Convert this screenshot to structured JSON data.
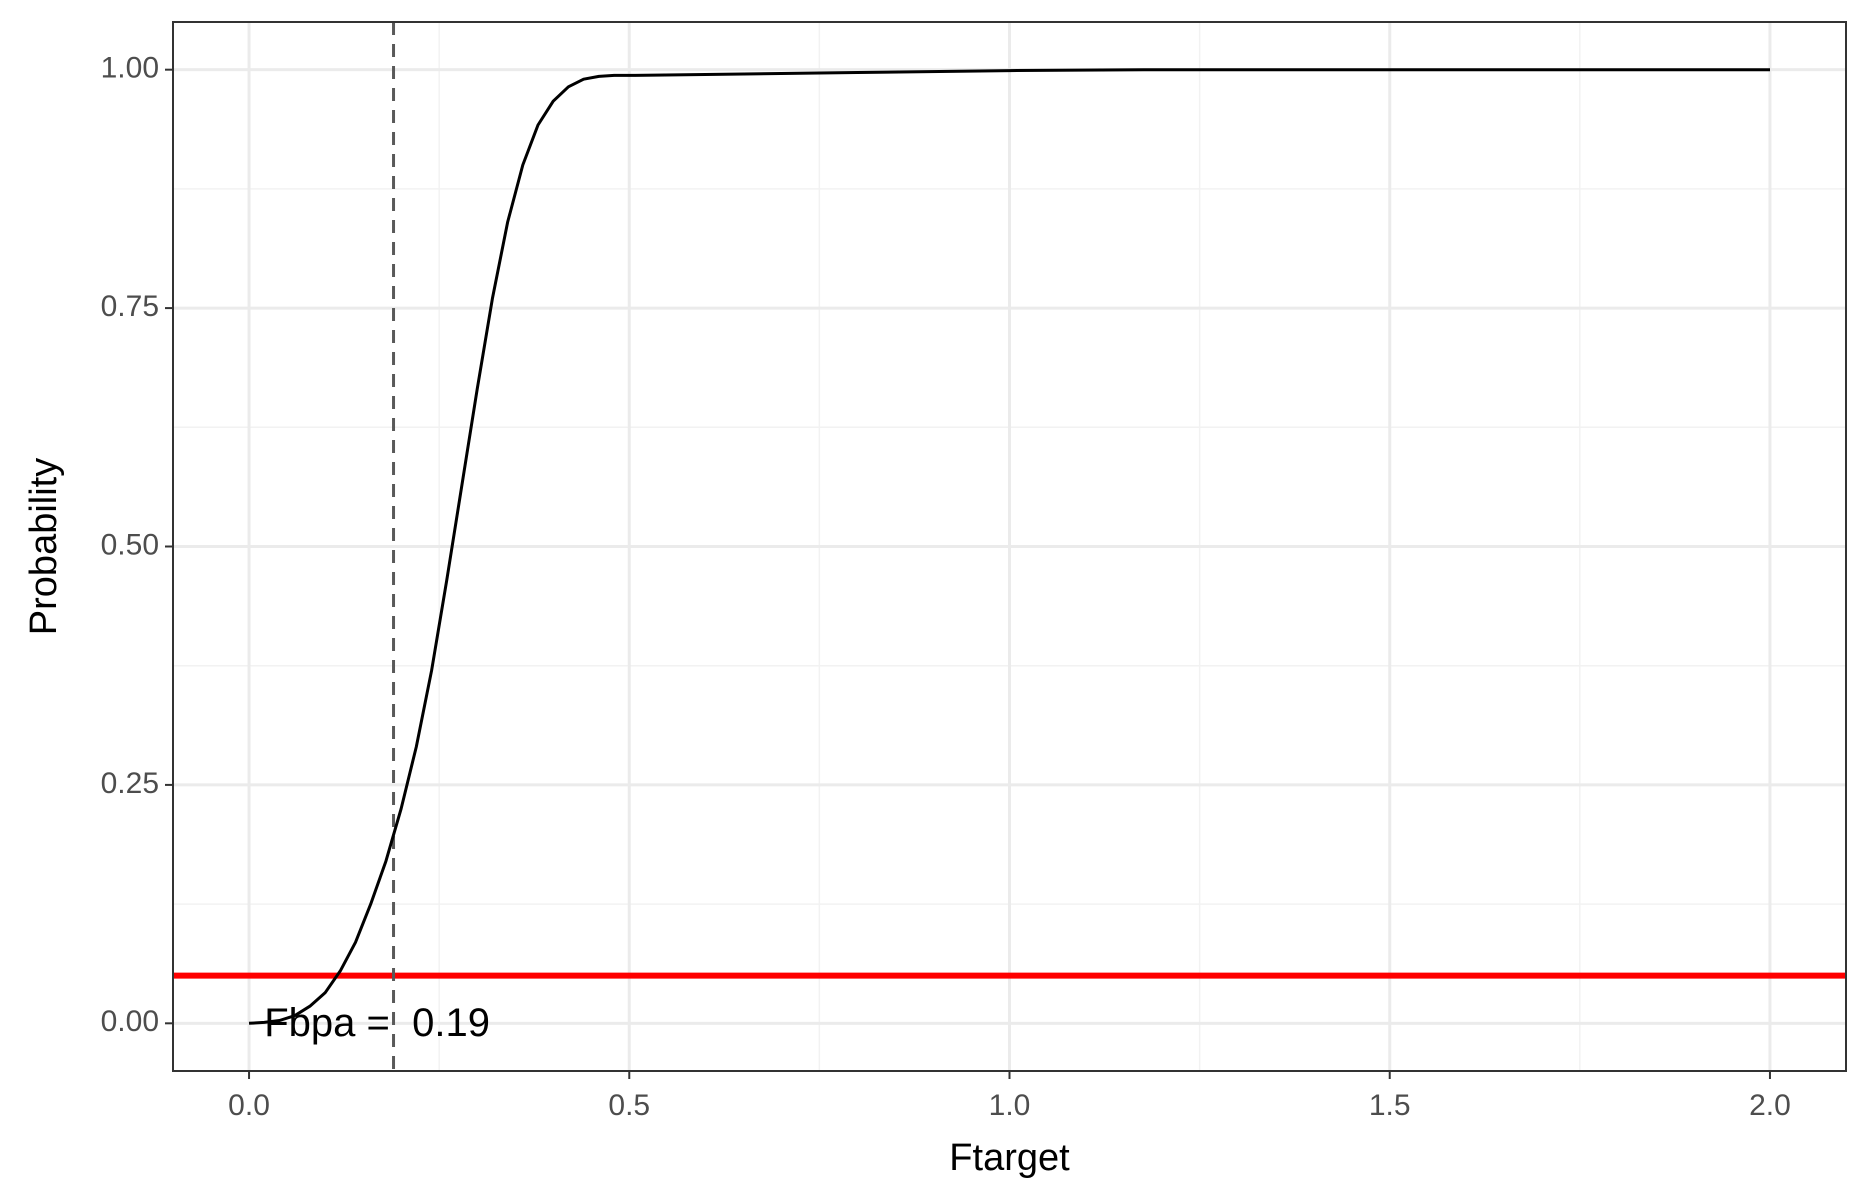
{
  "chart_data": {
    "type": "line",
    "title": "",
    "xlabel": "Ftarget",
    "ylabel": "Probability",
    "xlim": [
      -0.1,
      2.1
    ],
    "ylim": [
      -0.05,
      1.05
    ],
    "x_ticks": [
      0.0,
      0.5,
      1.0,
      1.5,
      2.0
    ],
    "x_tick_labels": [
      "0.0",
      "0.5",
      "1.0",
      "1.5",
      "2.0"
    ],
    "x_minor_ticks": [
      0.25,
      0.75,
      1.25,
      1.75
    ],
    "y_ticks": [
      0.0,
      0.25,
      0.5,
      0.75,
      1.0
    ],
    "y_tick_labels": [
      "0.00",
      "0.25",
      "0.50",
      "0.75",
      "1.00"
    ],
    "y_minor_ticks": [
      0.125,
      0.375,
      0.625,
      0.875
    ],
    "grid": true,
    "series": [
      {
        "color": "#000000",
        "x": [
          0.0,
          0.02,
          0.04,
          0.06,
          0.08,
          0.1,
          0.12,
          0.14,
          0.16,
          0.18,
          0.2,
          0.22,
          0.24,
          0.26,
          0.28,
          0.3,
          0.32,
          0.34,
          0.36,
          0.38,
          0.4,
          0.42,
          0.44,
          0.46,
          0.48,
          0.5,
          0.6,
          0.8,
          1.0,
          1.2,
          1.4,
          1.6,
          1.8,
          2.0
        ],
        "y": [
          0.0,
          0.001,
          0.003,
          0.008,
          0.018,
          0.032,
          0.055,
          0.085,
          0.125,
          0.17,
          0.225,
          0.29,
          0.37,
          0.465,
          0.565,
          0.665,
          0.76,
          0.84,
          0.9,
          0.942,
          0.967,
          0.982,
          0.99,
          0.993,
          0.994,
          0.994,
          0.995,
          0.997,
          0.999,
          1.0,
          1.0,
          1.0,
          1.0,
          1.0
        ]
      }
    ],
    "reference_lines": [
      {
        "orientation": "horizontal",
        "value": 0.05,
        "color": "#ff0000",
        "style": "solid"
      },
      {
        "orientation": "vertical",
        "value": 0.19,
        "color": "#595959",
        "style": "dashed"
      }
    ],
    "annotations": [
      {
        "text": "Fbpa =  0.19",
        "x": 0.02,
        "y": 0.0
      }
    ]
  }
}
